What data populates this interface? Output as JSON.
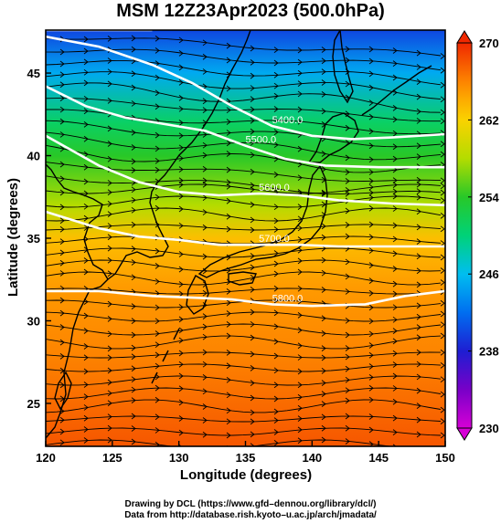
{
  "title": "MSM 12Z23Apr2023 (500.0hPa)",
  "x_label": "Longitude (degrees)",
  "y_label": "Latitude  (degrees)",
  "credits": {
    "line1": "Drawing by DCL (https://www.gfd–dennou.org/library/dcl/)",
    "line2": "Data from http://database.rish.kyoto–u.ac.jp/arch/jmadata/"
  },
  "chart_data": {
    "type": "heatmap",
    "title": "MSM 12Z23Apr2023 (500.0hPa)",
    "xlabel": "Longitude (degrees)",
    "ylabel": "Latitude  (degrees)",
    "xlim": [
      120,
      150
    ],
    "ylim": [
      22.4,
      47.6
    ],
    "x_ticks": [
      120,
      125,
      130,
      135,
      140,
      145,
      150
    ],
    "y_ticks": [
      25,
      30,
      35,
      40,
      45
    ],
    "colorbar": {
      "min": 230,
      "max": 270,
      "ticks": [
        230,
        238,
        246,
        254,
        262,
        270
      ]
    },
    "temperature_profile": [
      {
        "lat": 47.6,
        "value": 240
      },
      {
        "lat": 45,
        "value": 245
      },
      {
        "lat": 42,
        "value": 251
      },
      {
        "lat": 40,
        "value": 254
      },
      {
        "lat": 37,
        "value": 258
      },
      {
        "lat": 35,
        "value": 263
      },
      {
        "lat": 32,
        "value": 265
      },
      {
        "lat": 28,
        "value": 266
      },
      {
        "lat": 22.4,
        "value": 268
      }
    ],
    "contours": [
      {
        "label": "5400.0",
        "points": [
          [
            120,
            47.2
          ],
          [
            124,
            46.6
          ],
          [
            128,
            45.5
          ],
          [
            131,
            44.4
          ],
          [
            134,
            43.0
          ],
          [
            137,
            41.8
          ],
          [
            140,
            41.2
          ],
          [
            143,
            41.0
          ],
          [
            146,
            41.1
          ],
          [
            150,
            41.3
          ]
        ]
      },
      {
        "label": "5500.0",
        "points": [
          [
            120,
            44.2
          ],
          [
            123,
            43.0
          ],
          [
            126,
            42.3
          ],
          [
            129,
            41.9
          ],
          [
            132,
            41.5
          ],
          [
            135,
            40.6
          ],
          [
            138,
            39.8
          ],
          [
            141,
            39.4
          ],
          [
            145,
            39.3
          ],
          [
            150,
            39.3
          ]
        ]
      },
      {
        "label": "5600.0",
        "points": [
          [
            120,
            41.2
          ],
          [
            124,
            39.4
          ],
          [
            127,
            38.4
          ],
          [
            130,
            37.8
          ],
          [
            133,
            37.6
          ],
          [
            136,
            37.7
          ],
          [
            139,
            37.6
          ],
          [
            142,
            37.3
          ],
          [
            146,
            37.1
          ],
          [
            150,
            37.0
          ]
        ]
      },
      {
        "label": "5700.0",
        "points": [
          [
            120,
            36.6
          ],
          [
            124,
            35.6
          ],
          [
            127,
            35.1
          ],
          [
            130,
            34.9
          ],
          [
            133,
            34.6
          ],
          [
            136,
            34.6
          ],
          [
            139,
            34.6
          ],
          [
            142,
            34.5
          ],
          [
            146,
            34.5
          ],
          [
            150,
            34.5
          ]
        ]
      },
      {
        "label": "5800.0",
        "points": [
          [
            120,
            31.8
          ],
          [
            124,
            31.8
          ],
          [
            128,
            31.5
          ],
          [
            131,
            31.4
          ],
          [
            134,
            31.3
          ],
          [
            137,
            31.0
          ],
          [
            140,
            30.9
          ],
          [
            144,
            31.0
          ],
          [
            147,
            31.5
          ],
          [
            150,
            31.8
          ]
        ]
      },
      {
        "label": "",
        "points": [
          [
            120,
            47.6
          ],
          [
            128,
            47.6
          ]
        ]
      }
    ]
  }
}
